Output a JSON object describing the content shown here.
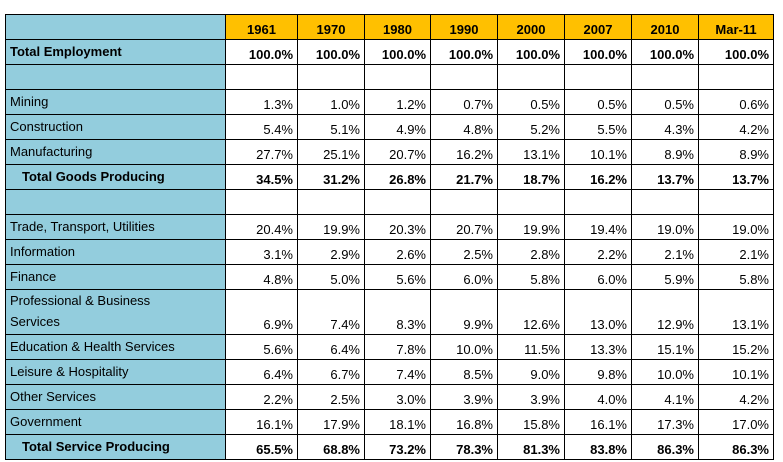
{
  "table": {
    "columns": [
      "1961",
      "1970",
      "1980",
      "1990",
      "2000",
      "2007",
      "2010",
      "Mar-11"
    ],
    "sections": [
      {
        "rows": [
          {
            "label": "Total Employment",
            "bold": true,
            "cells": [
              "100.0%",
              "100.0%",
              "100.0%",
              "100.0%",
              "100.0%",
              "100.0%",
              "100.0%",
              "100.0%"
            ]
          }
        ]
      },
      {
        "rows": [
          {
            "label": "Mining",
            "cells": [
              "1.3%",
              "1.0%",
              "1.2%",
              "0.7%",
              "0.5%",
              "0.5%",
              "0.5%",
              "0.6%"
            ]
          },
          {
            "label": "Construction",
            "cells": [
              "5.4%",
              "5.1%",
              "4.9%",
              "4.8%",
              "5.2%",
              "5.5%",
              "4.3%",
              "4.2%"
            ]
          },
          {
            "label": "Manufacturing",
            "cells": [
              "27.7%",
              "25.1%",
              "20.7%",
              "16.2%",
              "13.1%",
              "10.1%",
              "8.9%",
              "8.9%"
            ]
          },
          {
            "label": "Total Goods Producing",
            "bold": true,
            "indent": true,
            "cells": [
              "34.5%",
              "31.2%",
              "26.8%",
              "21.7%",
              "18.7%",
              "16.2%",
              "13.7%",
              "13.7%"
            ]
          }
        ]
      },
      {
        "rows": [
          {
            "label": "Trade, Transport, Utilities",
            "cells": [
              "20.4%",
              "19.9%",
              "20.3%",
              "20.7%",
              "19.9%",
              "19.4%",
              "19.0%",
              "19.0%"
            ]
          },
          {
            "label": "Information",
            "cells": [
              "3.1%",
              "2.9%",
              "2.6%",
              "2.5%",
              "2.8%",
              "2.2%",
              "2.1%",
              "2.1%"
            ]
          },
          {
            "label": "Finance",
            "cells": [
              "4.8%",
              "5.0%",
              "5.6%",
              "6.0%",
              "5.8%",
              "6.0%",
              "5.9%",
              "5.8%"
            ]
          },
          {
            "label": "Professional & Business Services",
            "cells": [
              "6.9%",
              "7.4%",
              "8.3%",
              "9.9%",
              "12.6%",
              "13.0%",
              "12.9%",
              "13.1%"
            ]
          },
          {
            "label": "Education & Health Services",
            "cells": [
              "5.6%",
              "6.4%",
              "7.8%",
              "10.0%",
              "11.5%",
              "13.3%",
              "15.1%",
              "15.2%"
            ]
          },
          {
            "label": "Leisure & Hospitality",
            "cells": [
              "6.4%",
              "6.7%",
              "7.4%",
              "8.5%",
              "9.0%",
              "9.8%",
              "10.0%",
              "10.1%"
            ]
          },
          {
            "label": "Other Services",
            "cells": [
              "2.2%",
              "2.5%",
              "3.0%",
              "3.9%",
              "3.9%",
              "4.0%",
              "4.1%",
              "4.2%"
            ]
          },
          {
            "label": "Government",
            "cells": [
              "16.1%",
              "17.9%",
              "18.1%",
              "16.8%",
              "15.8%",
              "16.1%",
              "17.3%",
              "17.0%"
            ]
          },
          {
            "label": "Total Service Producing",
            "bold": true,
            "indent": true,
            "cells": [
              "65.5%",
              "68.8%",
              "73.2%",
              "78.3%",
              "81.3%",
              "83.8%",
              "86.3%",
              "86.3%"
            ]
          }
        ]
      }
    ]
  }
}
